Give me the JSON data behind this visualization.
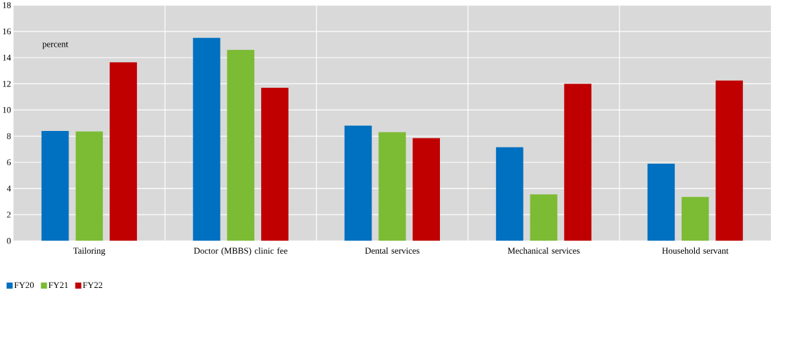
{
  "chart_data": {
    "type": "bar",
    "ylabel": "percent",
    "categories": [
      "Tailoring",
      "Doctor (MBBS) clinic fee",
      "Dental services",
      "Mechanical services",
      "Household servant"
    ],
    "series": [
      {
        "name": "FY20",
        "color": "#0070c0",
        "values": [
          8.4,
          15.5,
          8.8,
          7.15,
          5.9
        ]
      },
      {
        "name": "FY21",
        "color": "#7cbb34",
        "values": [
          8.35,
          14.6,
          8.3,
          3.55,
          3.35
        ]
      },
      {
        "name": "FY22",
        "color": "#c00000",
        "values": [
          13.65,
          11.7,
          7.85,
          12.0,
          12.25
        ]
      }
    ],
    "ylim": [
      0,
      18
    ],
    "yticks": [
      0,
      2,
      4,
      6,
      8,
      10,
      12,
      14,
      16,
      18
    ],
    "grid": true,
    "legend": "bottom left"
  }
}
